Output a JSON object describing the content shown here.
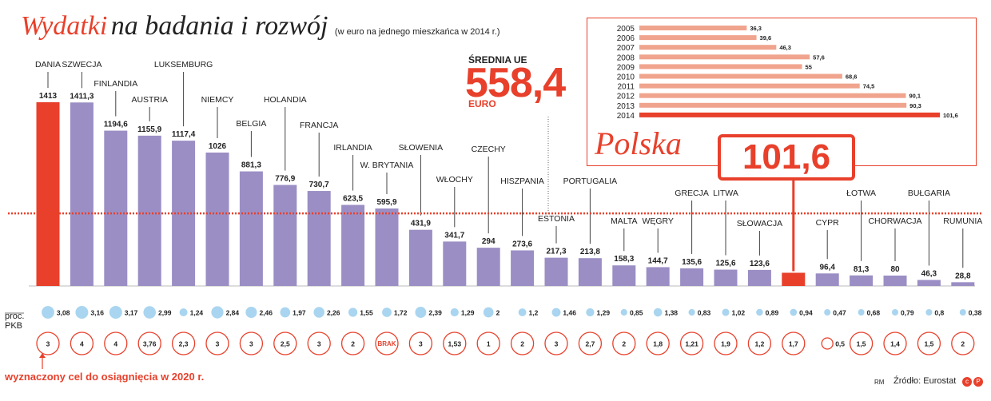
{
  "title": {
    "part1": "Wydatki",
    "part2": "na badania i rozwój",
    "subtitle": "(w euro na jednego mieszkańca w 2014 r.)"
  },
  "average": {
    "label": "ŚREDNIA UE",
    "value": "558,4",
    "value_num": 558.4,
    "unit": "EURO"
  },
  "labels": {
    "pkb": "proc.\nPKB",
    "target": "wyznaczony cel do osiągnięcia w 2020 r.",
    "credit": "RM",
    "source": "Źródło: Eurostat"
  },
  "colors": {
    "highlight": "#e8402b",
    "bar": "#9b8ec4",
    "pkb_circle": "#a9d5f0",
    "inset_bar": "#f0a48e",
    "text": "#222222"
  },
  "chart_data": [
    {
      "type": "bar",
      "title": "Wydatki na badania i rozwój",
      "subtitle": "(w euro na jednego mieszkańca w 2014 r.)",
      "unit": "euro na mieszkańca",
      "ylim": [
        0,
        1413
      ],
      "reference_line": {
        "label": "ŚREDNIA UE",
        "value": 558.4
      },
      "categories": [
        "DANIA",
        "SZWECJA",
        "FINLANDIA",
        "AUSTRIA",
        "LUKSEMBURG",
        "NIEMCY",
        "BELGIA",
        "HOLANDIA",
        "FRANCJA",
        "IRLANDIA",
        "W. BRYTANIA",
        "SŁOWENIA",
        "WŁOCHY",
        "CZECHY",
        "HISZPANIA",
        "ESTONIA",
        "PORTUGALIA",
        "MALTA",
        "WĘGRY",
        "GRECJA",
        "LITWA",
        "SŁOWACJA",
        "Polska",
        "CYPR",
        "ŁOTWA",
        "CHORWACJA",
        "BUŁGARIA",
        "RUMUNIA"
      ],
      "values": [
        1413,
        1411.3,
        1194.6,
        1155.9,
        1117.4,
        1026,
        881.3,
        776.9,
        730.7,
        623.5,
        595.9,
        431.9,
        341.7,
        294,
        273.6,
        217.3,
        213.8,
        158.3,
        144.7,
        135.6,
        125.6,
        123.6,
        101.6,
        96.4,
        81.3,
        80,
        46.3,
        28.8
      ],
      "value_labels": [
        "1413",
        "1411,3",
        "1194,6",
        "1155,9",
        "1117,4",
        "1026",
        "881,3",
        "776,9",
        "730,7",
        "623,5",
        "595,9",
        "431,9",
        "341,7",
        "294",
        "273,6",
        "217,3",
        "213,8",
        "158,3",
        "144,7",
        "135,6",
        "125,6",
        "123,6",
        "",
        "96,4",
        "81,3",
        "80",
        "46,3",
        "28,8"
      ],
      "category_labels": [
        "DANIA",
        "SZWECJA",
        "FINLANDIA",
        "AUSTRIA",
        "LUKSEMBURG",
        "NIEMCY",
        "BELGIA",
        "HOLANDIA",
        "FRANCJA",
        "IRLANDIA",
        "W. BRYTANIA",
        "SŁOWENIA",
        "WŁOCHY",
        "CZECHY",
        "HISZPANIA",
        "ESTONIA",
        "PORTUGALIA",
        "MALTA",
        "WĘGRY",
        "GRECJA",
        "LITWA",
        "SŁOWACJA",
        "",
        "CYPR",
        "ŁOTWA",
        "CHORWACJA",
        "BUŁGARIA",
        "RUMUNIA"
      ],
      "highlighted": [
        "DANIA",
        "Polska"
      ],
      "highlight_value_label": "101,6",
      "pkb_percent": [
        3.08,
        3.16,
        3.17,
        2.99,
        1.24,
        2.84,
        2.46,
        1.97,
        2.26,
        1.55,
        1.72,
        2.39,
        1.29,
        2,
        1.2,
        1.46,
        1.29,
        0.85,
        1.38,
        0.83,
        1.02,
        0.89,
        0.94,
        0.47,
        0.68,
        0.79,
        0.8,
        0.38
      ],
      "pkb_labels": [
        "3,08",
        "3,16",
        "3,17",
        "2,99",
        "1,24",
        "2,84",
        "2,46",
        "1,97",
        "2,26",
        "1,55",
        "1,72",
        "2,39",
        "1,29",
        "2",
        "1,2",
        "1,46",
        "1,29",
        "0,85",
        "1,38",
        "0,83",
        "1,02",
        "0,89",
        "0,94",
        "0,47",
        "0,68",
        "0,79",
        "0,8",
        "0,38"
      ],
      "target_2020": [
        3,
        4,
        4,
        3.76,
        2.3,
        3,
        3,
        2.5,
        3,
        2,
        null,
        3,
        1.53,
        1,
        2,
        3,
        2.7,
        2,
        1.8,
        1.21,
        1.9,
        1.2,
        1.7,
        0.5,
        1.5,
        1.4,
        1.5,
        2
      ],
      "target_labels": [
        "3",
        "4",
        "4",
        "3,76",
        "2,3",
        "3",
        "3",
        "2,5",
        "3",
        "2",
        "BRAK",
        "3",
        "1,53",
        "1",
        "2",
        "3",
        "2,7",
        "2",
        "1,8",
        "1,21",
        "1,9",
        "1,2",
        "1,7",
        "0,5",
        "1,5",
        "1,4",
        "1,5",
        "2"
      ]
    },
    {
      "type": "bar",
      "orientation": "horizontal",
      "title": "Polska",
      "categories": [
        "2005",
        "2006",
        "2007",
        "2008",
        "2009",
        "2010",
        "2011",
        "2012",
        "2013",
        "2014"
      ],
      "values": [
        36.3,
        39.6,
        46.3,
        57.6,
        55,
        68.6,
        74.5,
        90.1,
        90.3,
        101.6
      ],
      "value_labels": [
        "36,3",
        "39,6",
        "46,3",
        "57,6",
        "55",
        "68,6",
        "74,5",
        "90,1",
        "90,3",
        "101,6"
      ],
      "highlighted": [
        "2014"
      ],
      "xlim": [
        0,
        101.6
      ]
    }
  ]
}
